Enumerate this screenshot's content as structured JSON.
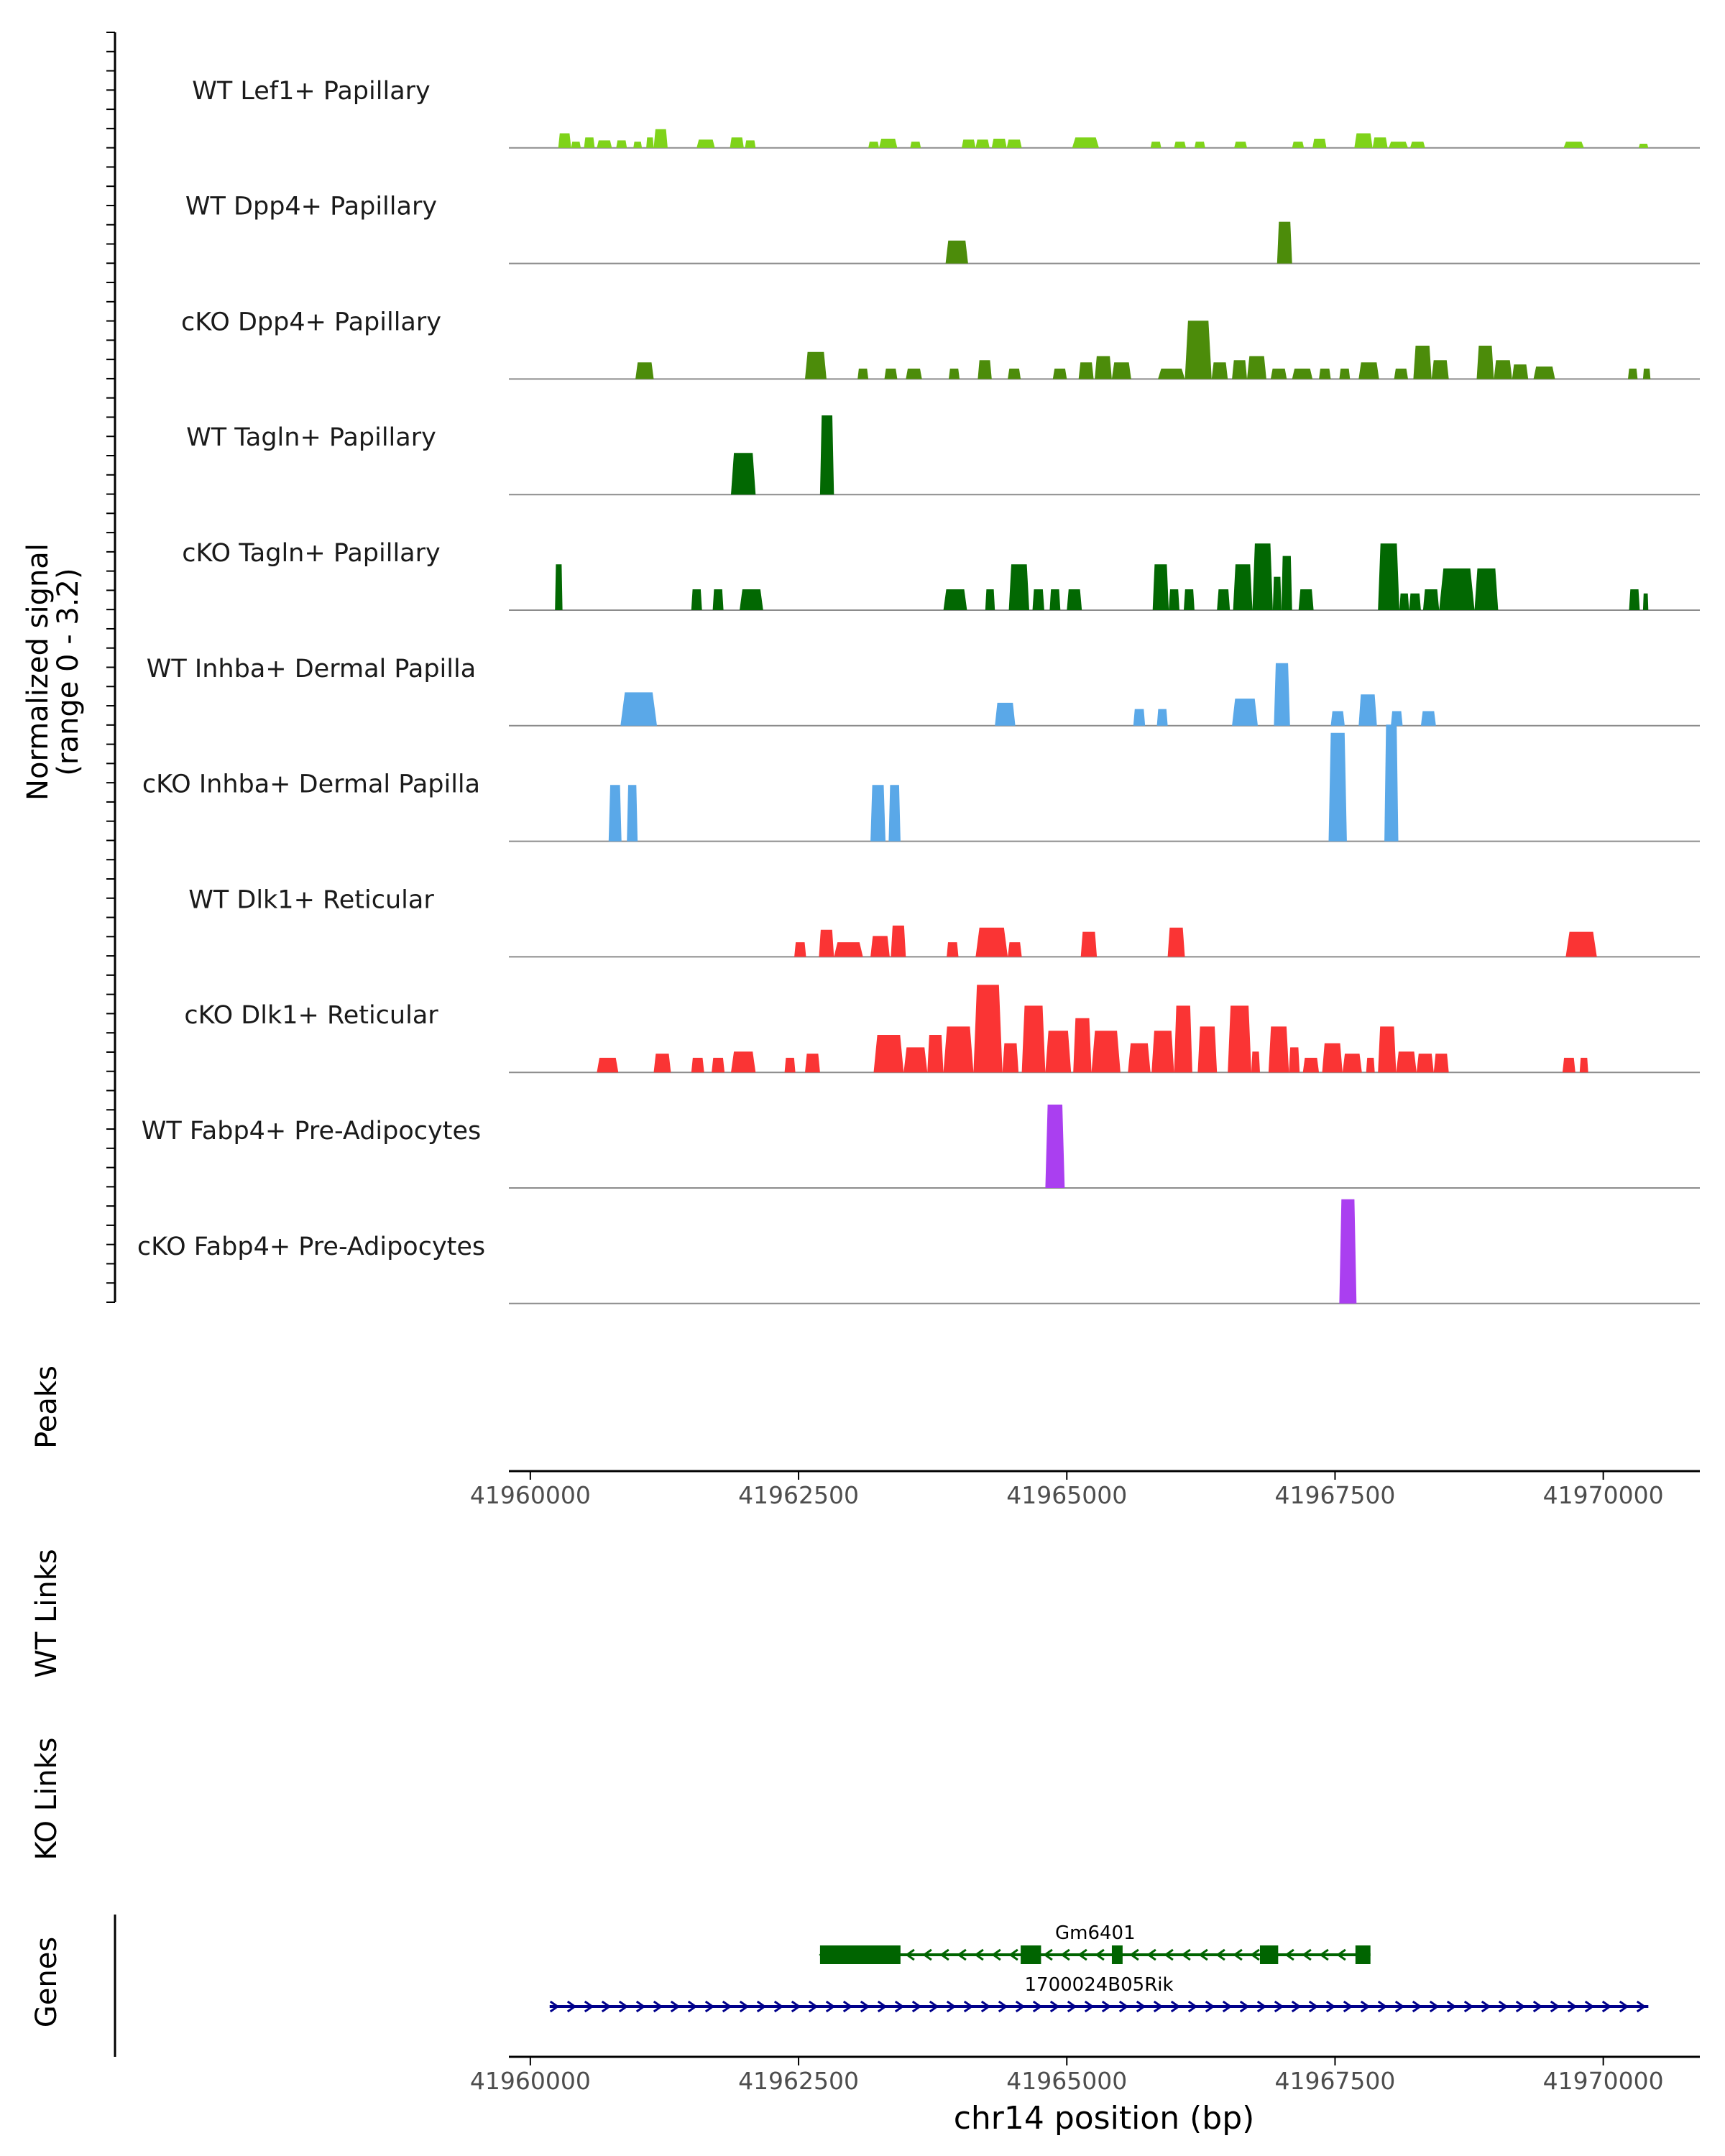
{
  "chart_data": {
    "type": "area",
    "title": "",
    "signal_axis_label": [
      "Normalized signal",
      "(range 0 - 3.2)"
    ],
    "signal_range": [
      0,
      3.2
    ],
    "xlim": [
      41959800,
      41970900
    ],
    "xlabel": "chr14 position (bp)",
    "x_ticks": [
      41960000,
      41962500,
      41965000,
      41967500,
      41970000
    ],
    "x_tick_labels": [
      "41960000",
      "41962500",
      "41965000",
      "41967500",
      "41970000"
    ],
    "tracks": [
      {
        "name": "WT Lef1+ Papillary",
        "color": "#7fd31a",
        "peaks": [
          [
            41960260,
            41960380,
            0.35
          ],
          [
            41960380,
            41960470,
            0.15
          ],
          [
            41960500,
            41960600,
            0.25
          ],
          [
            41960620,
            41960760,
            0.18
          ],
          [
            41960800,
            41960900,
            0.18
          ],
          [
            41960960,
            41961040,
            0.15
          ],
          [
            41961080,
            41961150,
            0.25
          ],
          [
            41961150,
            41961280,
            0.45
          ],
          [
            41961550,
            41961720,
            0.2
          ],
          [
            41961860,
            41961990,
            0.25
          ],
          [
            41962000,
            41962100,
            0.18
          ],
          [
            41963150,
            41963250,
            0.15
          ],
          [
            41963250,
            41963420,
            0.22
          ],
          [
            41963540,
            41963640,
            0.15
          ],
          [
            41964020,
            41964150,
            0.2
          ],
          [
            41964150,
            41964280,
            0.2
          ],
          [
            41964300,
            41964440,
            0.22
          ],
          [
            41964440,
            41964580,
            0.2
          ],
          [
            41965050,
            41965300,
            0.25
          ],
          [
            41965780,
            41965880,
            0.15
          ],
          [
            41966000,
            41966110,
            0.15
          ],
          [
            41966190,
            41966290,
            0.15
          ],
          [
            41966560,
            41966680,
            0.15
          ],
          [
            41967100,
            41967210,
            0.15
          ],
          [
            41967290,
            41967420,
            0.22
          ],
          [
            41967680,
            41967850,
            0.35
          ],
          [
            41967850,
            41967990,
            0.25
          ],
          [
            41968000,
            41968180,
            0.15
          ],
          [
            41968200,
            41968340,
            0.15
          ],
          [
            41969630,
            41969820,
            0.15
          ],
          [
            41970330,
            41970420,
            0.1
          ]
        ]
      },
      {
        "name": "WT Dpp4+ Papillary",
        "color": "#4c8c0a",
        "peaks": [
          [
            41963870,
            41964080,
            0.55
          ],
          [
            41966960,
            41967100,
            1.0
          ]
        ]
      },
      {
        "name": "cKO Dpp4+ Papillary",
        "color": "#4c8c0a",
        "peaks": [
          [
            41960980,
            41961150,
            0.4
          ],
          [
            41962560,
            41962760,
            0.65
          ],
          [
            41963050,
            41963150,
            0.25
          ],
          [
            41963300,
            41963420,
            0.25
          ],
          [
            41963500,
            41963650,
            0.25
          ],
          [
            41963900,
            41964000,
            0.25
          ],
          [
            41964170,
            41964300,
            0.45
          ],
          [
            41964450,
            41964570,
            0.25
          ],
          [
            41964870,
            41965000,
            0.25
          ],
          [
            41965110,
            41965250,
            0.4
          ],
          [
            41965260,
            41965420,
            0.55
          ],
          [
            41965420,
            41965600,
            0.4
          ],
          [
            41965850,
            41966100,
            0.25
          ],
          [
            41966100,
            41966350,
            1.4
          ],
          [
            41966350,
            41966500,
            0.4
          ],
          [
            41966540,
            41966680,
            0.45
          ],
          [
            41966680,
            41966860,
            0.55
          ],
          [
            41966900,
            41967050,
            0.25
          ],
          [
            41967100,
            41967290,
            0.25
          ],
          [
            41967350,
            41967460,
            0.25
          ],
          [
            41967540,
            41967640,
            0.25
          ],
          [
            41967720,
            41967910,
            0.4
          ],
          [
            41968050,
            41968180,
            0.25
          ],
          [
            41968230,
            41968400,
            0.8
          ],
          [
            41968400,
            41968560,
            0.45
          ],
          [
            41968820,
            41968980,
            0.8
          ],
          [
            41968980,
            41969150,
            0.45
          ],
          [
            41969150,
            41969300,
            0.35
          ],
          [
            41969350,
            41969550,
            0.3
          ],
          [
            41970230,
            41970320,
            0.25
          ],
          [
            41970370,
            41970440,
            0.25
          ]
        ]
      },
      {
        "name": "WT Tagln+ Papillary",
        "color": "#026802",
        "peaks": [
          [
            41961870,
            41962100,
            1.0
          ],
          [
            41962700,
            41962830,
            1.9
          ]
        ]
      },
      {
        "name": "cKO Tagln+ Papillary",
        "color": "#026802",
        "peaks": [
          [
            41960230,
            41960300,
            1.1
          ],
          [
            41961500,
            41961600,
            0.5
          ],
          [
            41961700,
            41961800,
            0.5
          ],
          [
            41961950,
            41962170,
            0.5
          ],
          [
            41963850,
            41964070,
            0.5
          ],
          [
            41964240,
            41964330,
            0.5
          ],
          [
            41964460,
            41964650,
            1.1
          ],
          [
            41964680,
            41964790,
            0.5
          ],
          [
            41964840,
            41964940,
            0.5
          ],
          [
            41965000,
            41965140,
            0.5
          ],
          [
            41965800,
            41965950,
            1.1
          ],
          [
            41965950,
            41966050,
            0.5
          ],
          [
            41966090,
            41966190,
            0.5
          ],
          [
            41966400,
            41966520,
            0.5
          ],
          [
            41966550,
            41966730,
            1.1
          ],
          [
            41966730,
            41966920,
            1.6
          ],
          [
            41966920,
            41967000,
            0.8
          ],
          [
            41967000,
            41967100,
            1.3
          ],
          [
            41967160,
            41967300,
            0.5
          ],
          [
            41967900,
            41968100,
            1.6
          ],
          [
            41968100,
            41968190,
            0.4
          ],
          [
            41968190,
            41968300,
            0.4
          ],
          [
            41968320,
            41968470,
            0.5
          ],
          [
            41968470,
            41968800,
            1.0
          ],
          [
            41968800,
            41969020,
            1.0
          ],
          [
            41970240,
            41970340,
            0.5
          ],
          [
            41970370,
            41970420,
            0.4
          ]
        ]
      },
      {
        "name": "WT Inhba+ Dermal Papilla",
        "color": "#5aa8e8",
        "peaks": [
          [
            41960840,
            41961180,
            0.8
          ],
          [
            41964330,
            41964520,
            0.55
          ],
          [
            41965620,
            41965730,
            0.4
          ],
          [
            41965840,
            41965940,
            0.4
          ],
          [
            41966540,
            41966780,
            0.65
          ],
          [
            41966930,
            41967080,
            1.5
          ],
          [
            41967460,
            41967590,
            0.35
          ],
          [
            41967720,
            41967890,
            0.75
          ],
          [
            41968020,
            41968130,
            0.35
          ],
          [
            41968300,
            41968440,
            0.35
          ]
        ]
      },
      {
        "name": "cKO Inhba+ Dermal Papilla",
        "color": "#5aa8e8",
        "peaks": [
          [
            41960730,
            41960850,
            1.35
          ],
          [
            41960900,
            41961000,
            1.35
          ],
          [
            41963170,
            41963310,
            1.35
          ],
          [
            41963340,
            41963450,
            1.35
          ],
          [
            41967440,
            41967610,
            2.6
          ],
          [
            41967960,
            41968090,
            2.8
          ]
        ]
      },
      {
        "name": "WT Dlk1+ Reticular",
        "color": "#fa3434",
        "peaks": [
          [
            41962460,
            41962570,
            0.35
          ],
          [
            41962690,
            41962830,
            0.65
          ],
          [
            41962830,
            41963100,
            0.35
          ],
          [
            41963170,
            41963350,
            0.5
          ],
          [
            41963360,
            41963500,
            0.75
          ],
          [
            41963880,
            41963990,
            0.35
          ],
          [
            41964150,
            41964450,
            0.7
          ],
          [
            41964450,
            41964580,
            0.35
          ],
          [
            41965130,
            41965280,
            0.6
          ],
          [
            41965940,
            41966100,
            0.7
          ],
          [
            41969650,
            41969940,
            0.6
          ]
        ]
      },
      {
        "name": "cKO Dlk1+ Reticular",
        "color": "#fa3434",
        "peaks": [
          [
            41960620,
            41960820,
            0.35
          ],
          [
            41961150,
            41961310,
            0.45
          ],
          [
            41961500,
            41961620,
            0.35
          ],
          [
            41961690,
            41961810,
            0.35
          ],
          [
            41961870,
            41962100,
            0.5
          ],
          [
            41962370,
            41962470,
            0.35
          ],
          [
            41962560,
            41962700,
            0.45
          ],
          [
            41963200,
            41963480,
            0.9
          ],
          [
            41963480,
            41963700,
            0.6
          ],
          [
            41963700,
            41963850,
            0.9
          ],
          [
            41963850,
            41964130,
            1.1
          ],
          [
            41964130,
            41964400,
            2.1
          ],
          [
            41964400,
            41964550,
            0.7
          ],
          [
            41964580,
            41964800,
            1.6
          ],
          [
            41964800,
            41965040,
            1.0
          ],
          [
            41965060,
            41965230,
            1.3
          ],
          [
            41965230,
            41965500,
            1.0
          ],
          [
            41965570,
            41965780,
            0.7
          ],
          [
            41965790,
            41966000,
            1.0
          ],
          [
            41966000,
            41966170,
            1.6
          ],
          [
            41966220,
            41966400,
            1.1
          ],
          [
            41966500,
            41966720,
            1.6
          ],
          [
            41966720,
            41966800,
            0.5
          ],
          [
            41966880,
            41967070,
            1.1
          ],
          [
            41967070,
            41967170,
            0.6
          ],
          [
            41967200,
            41967350,
            0.35
          ],
          [
            41967380,
            41967570,
            0.7
          ],
          [
            41967570,
            41967750,
            0.45
          ],
          [
            41967790,
            41967870,
            0.35
          ],
          [
            41967900,
            41968070,
            1.1
          ],
          [
            41968070,
            41968260,
            0.5
          ],
          [
            41968260,
            41968420,
            0.45
          ],
          [
            41968420,
            41968560,
            0.45
          ],
          [
            41969620,
            41969740,
            0.35
          ],
          [
            41969780,
            41969860,
            0.35
          ]
        ]
      },
      {
        "name": "WT Fabp4+ Pre-Adipocytes",
        "color": "#aa3ff0",
        "peaks": [
          [
            41964800,
            41964980,
            2.0
          ]
        ]
      },
      {
        "name": "cKO Fabp4+ Pre-Adipocytes",
        "color": "#aa3ff0",
        "peaks": [
          [
            41967540,
            41967700,
            2.5
          ]
        ]
      }
    ],
    "peaks_track_label": "Peaks",
    "link_tracks": [
      {
        "label": "WT Links"
      },
      {
        "label": "KO Links"
      }
    ],
    "genes_track_label": "Genes",
    "genes": [
      {
        "name": "Gm6401",
        "strand": "-",
        "color": "#006400",
        "start": 41962700,
        "end": 41967830,
        "exons": [
          [
            41962700,
            41963450
          ],
          [
            41964570,
            41964760
          ],
          [
            41965420,
            41965520
          ],
          [
            41966800,
            41966970
          ],
          [
            41967690,
            41967830
          ]
        ]
      },
      {
        "name": "1700024B05Rik",
        "strand": "+",
        "color": "#00008b",
        "start": 41960180,
        "end": 41970420,
        "exons": []
      }
    ]
  }
}
